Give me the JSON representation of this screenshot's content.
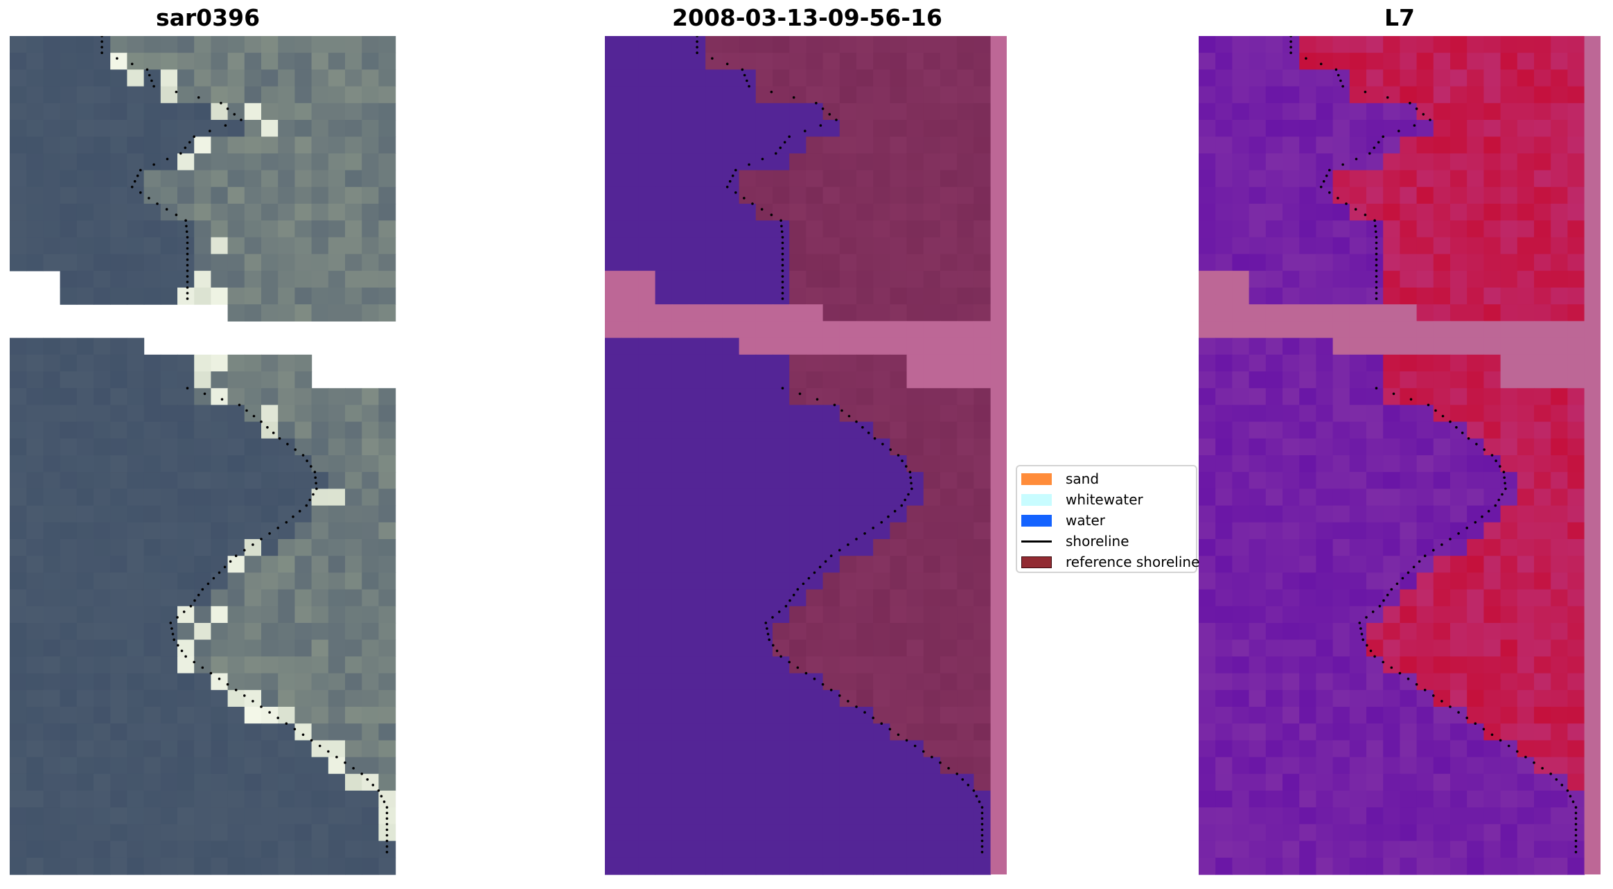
{
  "panels": [
    {
      "title": "sar0396"
    },
    {
      "title": "2008-03-13-09-56-16"
    },
    {
      "title": "L7"
    }
  ],
  "legend": [
    {
      "label": "sand",
      "kind": "patch",
      "color": "#ff8c3a"
    },
    {
      "label": "whitewater",
      "kind": "patch",
      "color": "#c8fcff"
    },
    {
      "label": "water",
      "kind": "patch",
      "color": "#1463ff"
    },
    {
      "label": "shoreline",
      "kind": "line",
      "color": "#000000"
    },
    {
      "label": "reference shoreline",
      "kind": "patch",
      "color": "#922b32"
    }
  ],
  "colors": {
    "classified_water": "#542596",
    "classified_land": "#7b2c58",
    "no_data": "#bd6796",
    "index_low": "#6a16a6",
    "index_high": "#c5103b",
    "rgb_water": "#4a5a6e",
    "rgb_bright": "#f3f7e8"
  }
}
